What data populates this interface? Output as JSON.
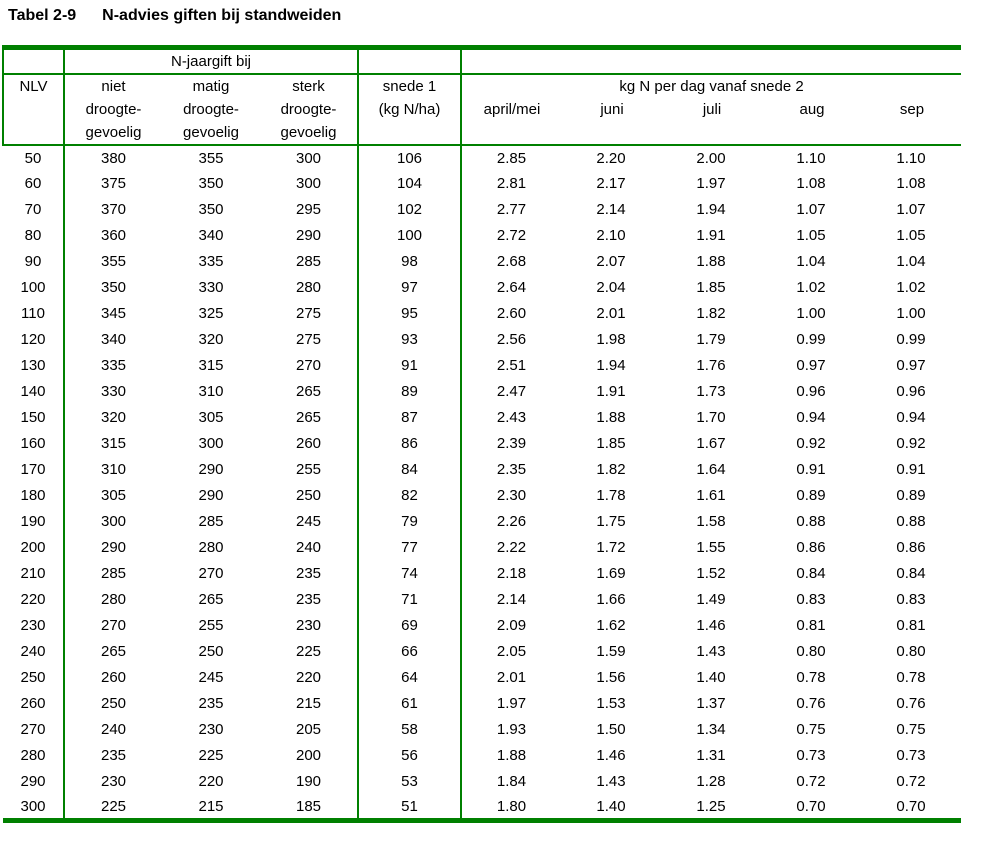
{
  "title": {
    "tag": "Tabel 2-9",
    "text": "N-advies giften bij standweiden"
  },
  "colors": {
    "border_green": "#008000",
    "text": "#000000",
    "background": "#ffffff"
  },
  "header": {
    "nlv": "NLV",
    "jaargift_group": "N-jaargift bij",
    "jaargift_cols": [
      [
        "niet",
        "droogte-",
        "gevoelig"
      ],
      [
        "matig",
        "droogte-",
        "gevoelig"
      ],
      [
        "sterk",
        "droogte-",
        "gevoelig"
      ]
    ],
    "snede1": [
      "snede 1",
      "(kg N/ha)"
    ],
    "kgn_group": "kg N per dag vanaf snede 2",
    "months": [
      "april/mei",
      "juni",
      "juli",
      "aug",
      "sep"
    ]
  },
  "rows": [
    [
      "50",
      "380",
      "355",
      "300",
      "106",
      "2.85",
      "2.20",
      "2.00",
      "1.10",
      "1.10"
    ],
    [
      "60",
      "375",
      "350",
      "300",
      "104",
      "2.81",
      "2.17",
      "1.97",
      "1.08",
      "1.08"
    ],
    [
      "70",
      "370",
      "350",
      "295",
      "102",
      "2.77",
      "2.14",
      "1.94",
      "1.07",
      "1.07"
    ],
    [
      "80",
      "360",
      "340",
      "290",
      "100",
      "2.72",
      "2.10",
      "1.91",
      "1.05",
      "1.05"
    ],
    [
      "90",
      "355",
      "335",
      "285",
      "98",
      "2.68",
      "2.07",
      "1.88",
      "1.04",
      "1.04"
    ],
    [
      "100",
      "350",
      "330",
      "280",
      "97",
      "2.64",
      "2.04",
      "1.85",
      "1.02",
      "1.02"
    ],
    [
      "110",
      "345",
      "325",
      "275",
      "95",
      "2.60",
      "2.01",
      "1.82",
      "1.00",
      "1.00"
    ],
    [
      "120",
      "340",
      "320",
      "275",
      "93",
      "2.56",
      "1.98",
      "1.79",
      "0.99",
      "0.99"
    ],
    [
      "130",
      "335",
      "315",
      "270",
      "91",
      "2.51",
      "1.94",
      "1.76",
      "0.97",
      "0.97"
    ],
    [
      "140",
      "330",
      "310",
      "265",
      "89",
      "2.47",
      "1.91",
      "1.73",
      "0.96",
      "0.96"
    ],
    [
      "150",
      "320",
      "305",
      "265",
      "87",
      "2.43",
      "1.88",
      "1.70",
      "0.94",
      "0.94"
    ],
    [
      "160",
      "315",
      "300",
      "260",
      "86",
      "2.39",
      "1.85",
      "1.67",
      "0.92",
      "0.92"
    ],
    [
      "170",
      "310",
      "290",
      "255",
      "84",
      "2.35",
      "1.82",
      "1.64",
      "0.91",
      "0.91"
    ],
    [
      "180",
      "305",
      "290",
      "250",
      "82",
      "2.30",
      "1.78",
      "1.61",
      "0.89",
      "0.89"
    ],
    [
      "190",
      "300",
      "285",
      "245",
      "79",
      "2.26",
      "1.75",
      "1.58",
      "0.88",
      "0.88"
    ],
    [
      "200",
      "290",
      "280",
      "240",
      "77",
      "2.22",
      "1.72",
      "1.55",
      "0.86",
      "0.86"
    ],
    [
      "210",
      "285",
      "270",
      "235",
      "74",
      "2.18",
      "1.69",
      "1.52",
      "0.84",
      "0.84"
    ],
    [
      "220",
      "280",
      "265",
      "235",
      "71",
      "2.14",
      "1.66",
      "1.49",
      "0.83",
      "0.83"
    ],
    [
      "230",
      "270",
      "255",
      "230",
      "69",
      "2.09",
      "1.62",
      "1.46",
      "0.81",
      "0.81"
    ],
    [
      "240",
      "265",
      "250",
      "225",
      "66",
      "2.05",
      "1.59",
      "1.43",
      "0.80",
      "0.80"
    ],
    [
      "250",
      "260",
      "245",
      "220",
      "64",
      "2.01",
      "1.56",
      "1.40",
      "0.78",
      "0.78"
    ],
    [
      "260",
      "250",
      "235",
      "215",
      "61",
      "1.97",
      "1.53",
      "1.37",
      "0.76",
      "0.76"
    ],
    [
      "270",
      "240",
      "230",
      "205",
      "58",
      "1.93",
      "1.50",
      "1.34",
      "0.75",
      "0.75"
    ],
    [
      "280",
      "235",
      "225",
      "200",
      "56",
      "1.88",
      "1.46",
      "1.31",
      "0.73",
      "0.73"
    ],
    [
      "290",
      "230",
      "220",
      "190",
      "53",
      "1.84",
      "1.43",
      "1.28",
      "0.72",
      "0.72"
    ],
    [
      "300",
      "225",
      "215",
      "185",
      "51",
      "1.80",
      "1.40",
      "1.25",
      "0.70",
      "0.70"
    ]
  ]
}
